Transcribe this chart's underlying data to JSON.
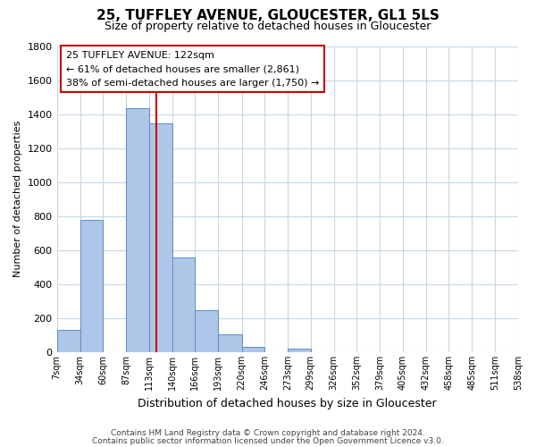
{
  "title": "25, TUFFLEY AVENUE, GLOUCESTER, GL1 5LS",
  "subtitle": "Size of property relative to detached houses in Gloucester",
  "xlabel": "Distribution of detached houses by size in Gloucester",
  "ylabel": "Number of detached properties",
  "bar_edges": [
    7,
    34,
    60,
    87,
    113,
    140,
    166,
    193,
    220,
    246,
    273,
    299,
    326,
    352,
    379,
    405,
    432,
    458,
    485,
    511,
    538
  ],
  "bar_heights": [
    130,
    780,
    0,
    1435,
    1345,
    555,
    248,
    105,
    30,
    0,
    20,
    0,
    0,
    0,
    0,
    0,
    0,
    0,
    0,
    0
  ],
  "bar_color": "#aec6e8",
  "bar_edge_color": "#5a8fc2",
  "vline_color": "#cc0000",
  "vline_x": 122,
  "ylim": [
    0,
    1800
  ],
  "yticks": [
    0,
    200,
    400,
    600,
    800,
    1000,
    1200,
    1400,
    1600,
    1800
  ],
  "xtick_labels": [
    "7sqm",
    "34sqm",
    "60sqm",
    "87sqm",
    "113sqm",
    "140sqm",
    "166sqm",
    "193sqm",
    "220sqm",
    "246sqm",
    "273sqm",
    "299sqm",
    "326sqm",
    "352sqm",
    "379sqm",
    "405sqm",
    "432sqm",
    "458sqm",
    "485sqm",
    "511sqm",
    "538sqm"
  ],
  "annotation_title": "25 TUFFLEY AVENUE: 122sqm",
  "annotation_line1": "← 61% of detached houses are smaller (2,861)",
  "annotation_line2": "38% of semi-detached houses are larger (1,750) →",
  "annotation_box_color": "#ffffff",
  "annotation_box_edge": "#cc0000",
  "footer1": "Contains HM Land Registry data © Crown copyright and database right 2024.",
  "footer2": "Contains public sector information licensed under the Open Government Licence v3.0.",
  "bg_color": "#ffffff",
  "grid_color": "#c8d8e8"
}
